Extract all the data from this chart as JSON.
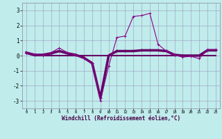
{
  "xlabel": "Windchill (Refroidissement éolien,°C)",
  "background_color": "#c0ecec",
  "grid_color": "#9999bb",
  "line_color": "#880088",
  "line_color2": "#660066",
  "hours": [
    0,
    1,
    2,
    3,
    4,
    5,
    6,
    7,
    8,
    9,
    10,
    11,
    12,
    13,
    14,
    15,
    16,
    17,
    18,
    19,
    20,
    21,
    22,
    23
  ],
  "series1": [
    0.2,
    0.1,
    0.0,
    0.2,
    0.5,
    0.2,
    0.05,
    -0.2,
    -0.5,
    -3.0,
    -0.7,
    1.2,
    1.3,
    2.6,
    2.65,
    2.8,
    0.75,
    0.3,
    0.05,
    -0.1,
    -0.05,
    -0.2,
    0.4,
    0.4
  ],
  "series2": [
    0.2,
    0.05,
    0.05,
    0.15,
    0.3,
    0.15,
    0.05,
    -0.15,
    -0.5,
    -2.8,
    0.0,
    0.3,
    0.3,
    0.3,
    0.35,
    0.35,
    0.35,
    0.3,
    0.05,
    0.0,
    0.0,
    0.0,
    0.35,
    0.35
  ],
  "series3": [
    0.15,
    0.0,
    0.0,
    0.0,
    0.0,
    0.0,
    0.0,
    0.0,
    0.0,
    0.0,
    0.0,
    0.0,
    0.0,
    0.0,
    0.0,
    0.0,
    0.0,
    0.0,
    0.0,
    0.0,
    0.0,
    0.0,
    0.0,
    0.0
  ],
  "ylim": [
    -3.5,
    3.5
  ],
  "yticks": [
    -3,
    -2,
    -1,
    0,
    1,
    2,
    3
  ],
  "figsize": [
    3.2,
    2.0
  ],
  "dpi": 100
}
